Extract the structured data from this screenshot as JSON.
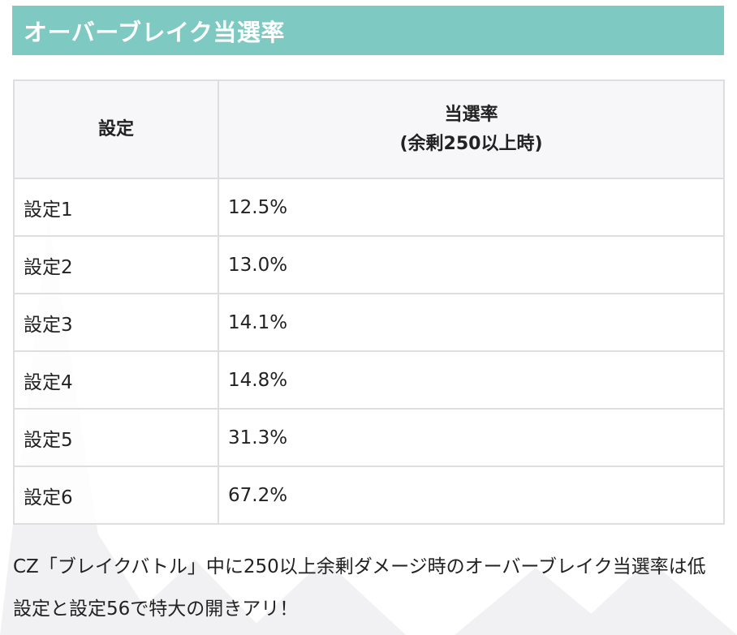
{
  "title": "オーバーブレイク当選率",
  "colors": {
    "title_bar": "#7ecac3",
    "title_text": "#ffffff",
    "header_bg": "#f7f7f9",
    "border": "#dedede"
  },
  "table": {
    "headers": {
      "setting": "設定",
      "rate_line1": "当選率",
      "rate_line2": "(余剰250以上時)"
    },
    "rows": [
      {
        "setting": "設定1",
        "rate": "12.5%"
      },
      {
        "setting": "設定2",
        "rate": "13.0%"
      },
      {
        "setting": "設定3",
        "rate": "14.1%"
      },
      {
        "setting": "設定4",
        "rate": "14.8%"
      },
      {
        "setting": "設定5",
        "rate": "31.3%"
      },
      {
        "setting": "設定6",
        "rate": "67.2%"
      }
    ]
  },
  "note": "CZ「ブレイクバトル」中に250以上余剰ダメージ時のオーバーブレイク当選率は低設定と設定56で特大の開きアリ！"
}
